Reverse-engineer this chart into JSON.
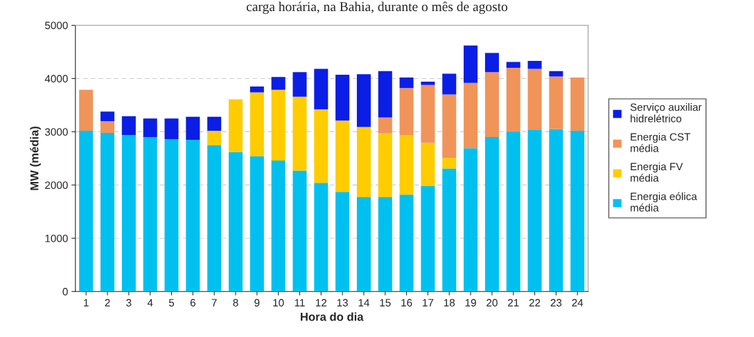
{
  "chart_data": {
    "type": "bar",
    "stacked": true,
    "title": "carga horária, na Bahia, durante o mês de agosto",
    "xlabel": "Hora do dia",
    "ylabel": "MW (média)",
    "categories": [
      "1",
      "2",
      "3",
      "4",
      "5",
      "6",
      "7",
      "8",
      "9",
      "10",
      "11",
      "12",
      "13",
      "14",
      "15",
      "16",
      "17",
      "18",
      "19",
      "20",
      "21",
      "22",
      "23",
      "24"
    ],
    "series": [
      {
        "name": "Energia eólica média",
        "color": "#00c0f0",
        "values": [
          3020,
          2980,
          2940,
          2900,
          2860,
          2850,
          2750,
          2620,
          2540,
          2460,
          2270,
          2040,
          1870,
          1770,
          1770,
          1820,
          1980,
          2310,
          2690,
          2900,
          3010,
          3040,
          3050,
          3020
        ]
      },
      {
        "name": "Energia FV média",
        "color": "#ffcc00",
        "values": [
          0,
          0,
          0,
          0,
          0,
          0,
          270,
          990,
          1200,
          1330,
          1390,
          1380,
          1340,
          1320,
          1200,
          1120,
          810,
          200,
          0,
          0,
          0,
          0,
          0,
          0
        ]
      },
      {
        "name": "Energia CST média",
        "color": "#f0945a",
        "values": [
          770,
          220,
          0,
          0,
          0,
          0,
          0,
          0,
          0,
          0,
          0,
          0,
          0,
          0,
          300,
          880,
          1090,
          1190,
          1230,
          1220,
          1190,
          1140,
          990,
          1000
        ]
      },
      {
        "name": "Serviço auxiliar hidrelétrico",
        "color": "#0a1ee6",
        "values": [
          0,
          180,
          350,
          350,
          390,
          430,
          260,
          0,
          110,
          240,
          460,
          760,
          860,
          990,
          870,
          200,
          60,
          390,
          700,
          360,
          110,
          150,
          100,
          0
        ]
      }
    ],
    "ylim": [
      0,
      5000
    ],
    "yticks": [
      0,
      1000,
      2000,
      3000,
      4000,
      5000
    ],
    "grid": "y",
    "legend": "right"
  }
}
